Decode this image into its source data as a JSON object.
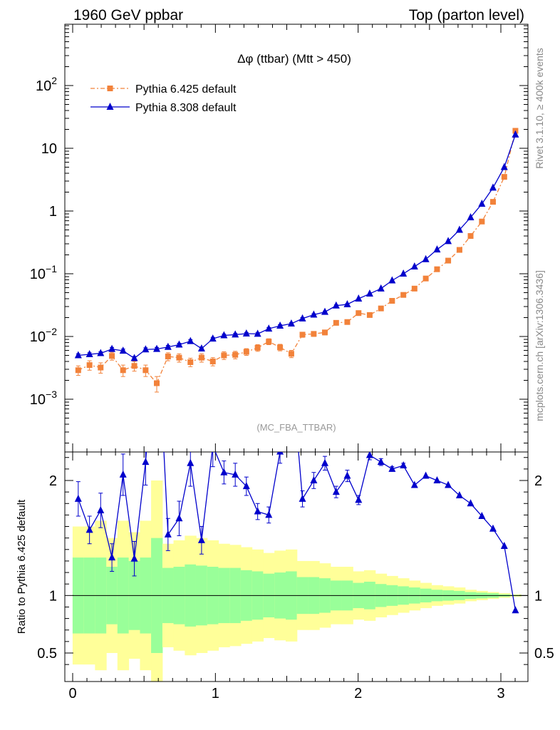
{
  "header": {
    "left": "1960 GeV ppbar",
    "right": "Top (parton level)"
  },
  "side_labels": {
    "rivet": "Rivet 3.1.10, ≥ 400k events",
    "mcplots": "mcplots.cern.ch [arXiv:1306.3436]"
  },
  "analysis_id": "(MC_FBA_TTBAR)",
  "colors": {
    "pythia6": "#f2823a",
    "pythia8": "#0000cc",
    "band_inner": "#99ff99",
    "band_outer": "#ffff99"
  },
  "chart_data": [
    {
      "type": "line",
      "title": "Δφ (ttbar) (Mtt > 450)",
      "yscale": "log",
      "xlim": [
        -0.06,
        3.2
      ],
      "ylim": [
        0.00015,
        1000
      ],
      "yticks": [
        {
          "value": 0.001,
          "base": "10",
          "exp": "−3"
        },
        {
          "value": 0.01,
          "base": "10",
          "exp": "−2"
        },
        {
          "value": 0.1,
          "base": "10",
          "exp": "−1"
        },
        {
          "value": 1,
          "base": "1",
          "exp": ""
        },
        {
          "value": 10,
          "base": "10",
          "exp": ""
        },
        {
          "value": 100,
          "base": "10",
          "exp": "2"
        }
      ],
      "legend_position": "top-left",
      "x": [
        0.039,
        0.118,
        0.196,
        0.275,
        0.353,
        0.432,
        0.511,
        0.589,
        0.668,
        0.746,
        0.825,
        0.903,
        0.982,
        1.06,
        1.139,
        1.217,
        1.296,
        1.374,
        1.453,
        1.532,
        1.61,
        1.689,
        1.767,
        1.846,
        1.924,
        2.003,
        2.081,
        2.16,
        2.238,
        2.317,
        2.395,
        2.474,
        2.553,
        2.631,
        2.71,
        2.788,
        2.867,
        2.945,
        3.024,
        3.102
      ],
      "series": [
        {
          "name": "Pythia 6.425 default",
          "values": [
            0.0029,
            0.0035,
            0.0032,
            0.0049,
            0.0029,
            0.0034,
            0.0029,
            0.0018,
            0.0048,
            0.0046,
            0.0039,
            0.0046,
            0.004,
            0.005,
            0.0051,
            0.0057,
            0.0066,
            0.0083,
            0.0067,
            0.0053,
            0.0107,
            0.011,
            0.0116,
            0.0165,
            0.017,
            0.0236,
            0.022,
            0.028,
            0.037,
            0.046,
            0.058,
            0.084,
            0.118,
            0.162,
            0.24,
            0.4,
            0.68,
            1.4,
            3.5,
            19.0
          ],
          "errors": [
            0.0005,
            0.0006,
            0.0006,
            0.0007,
            0.0006,
            0.0006,
            0.0006,
            0.0005,
            0.0007,
            0.0007,
            0.0006,
            0.0007,
            0.0006,
            0.0007,
            0.0007,
            0.0007,
            0.0008,
            0.0009,
            0.0008,
            0.0007,
            0.001,
            0.001,
            0.001,
            0.0012,
            0.0012,
            0.0015,
            0.0014,
            0.0016,
            0.0018,
            0.002,
            0,
            0,
            0,
            0,
            0,
            0,
            0,
            0,
            0,
            0
          ]
        },
        {
          "name": "Pythia 8.308 default",
          "values": [
            0.005,
            0.0052,
            0.0054,
            0.0063,
            0.0059,
            0.0045,
            0.0062,
            0.0063,
            0.0068,
            0.0074,
            0.0084,
            0.0064,
            0.0092,
            0.0104,
            0.0107,
            0.0111,
            0.011,
            0.0133,
            0.0148,
            0.016,
            0.0193,
            0.0222,
            0.0246,
            0.031,
            0.0325,
            0.04,
            0.048,
            0.058,
            0.078,
            0.1,
            0.13,
            0.17,
            0.243,
            0.33,
            0.5,
            0.79,
            1.3,
            2.35,
            5.0,
            16.5
          ],
          "errors": [
            0.0003,
            0.0003,
            0.0003,
            0.0004,
            0.0004,
            0.0003,
            0.0004,
            0.0004,
            0.0004,
            0.0004,
            0.0005,
            0.0004,
            0.0005,
            0.0005,
            0.0005,
            0.0005,
            0.0005,
            0.0006,
            0.0006,
            0.0006,
            0.0007,
            0.0008,
            0.0008,
            0.0009,
            0.0009,
            0,
            0,
            0,
            0,
            0,
            0,
            0,
            0,
            0,
            0,
            0,
            0,
            0,
            0,
            0
          ]
        }
      ]
    },
    {
      "type": "line",
      "ylabel": "Ratio to Pythia 6.425 default",
      "xlim": [
        -0.06,
        3.2
      ],
      "ylim": [
        0.34,
        2.3
      ],
      "xticks": [
        0,
        1,
        2,
        3
      ],
      "yticks": [
        0.5,
        1,
        2
      ],
      "reference": 1,
      "band_inner": [
        0.33,
        0.33,
        0.33,
        0.25,
        0.33,
        0.3,
        0.33,
        0.5,
        0.24,
        0.25,
        0.27,
        0.26,
        0.25,
        0.24,
        0.24,
        0.22,
        0.21,
        0.19,
        0.2,
        0.21,
        0.16,
        0.16,
        0.15,
        0.13,
        0.13,
        0.11,
        0.12,
        0.1,
        0.09,
        0.08,
        0.07,
        0.06,
        0.05,
        0.045,
        0.04,
        0.03,
        0.025,
        0.02,
        0.01,
        0.005
      ],
      "band_outer": [
        0.6,
        0.6,
        0.65,
        0.5,
        0.65,
        0.55,
        0.65,
        1.0,
        0.45,
        0.48,
        0.52,
        0.5,
        0.48,
        0.45,
        0.44,
        0.42,
        0.4,
        0.37,
        0.39,
        0.4,
        0.3,
        0.3,
        0.28,
        0.25,
        0.25,
        0.21,
        0.22,
        0.19,
        0.17,
        0.15,
        0.13,
        0.11,
        0.09,
        0.08,
        0.07,
        0.05,
        0.04,
        0.03,
        0.02,
        0.01
      ],
      "ratio": [
        1.84,
        1.57,
        1.74,
        1.33,
        2.05,
        1.32,
        2.16,
        3.5,
        1.53,
        1.67,
        2.15,
        1.48,
        2.3,
        2.07,
        2.05,
        1.95,
        1.73,
        1.7,
        2.25,
        3.0,
        1.84,
        2.0,
        2.15,
        1.9,
        2.04,
        1.83,
        2.22,
        2.16,
        2.1,
        2.13,
        1.96,
        2.04,
        2.0,
        1.96,
        1.87,
        1.8,
        1.69,
        1.58,
        1.43,
        0.87
      ],
      "ratio_errors": [
        0.15,
        0.12,
        0.15,
        0.12,
        0.18,
        0.15,
        0.2,
        0.3,
        0.14,
        0.15,
        0.2,
        0.12,
        0.18,
        0.1,
        0.1,
        0.08,
        0.07,
        0.07,
        0.1,
        0.2,
        0.07,
        0.07,
        0.06,
        0.05,
        0.05,
        0.04,
        0.04,
        0.03,
        0.02,
        0.02,
        0,
        0,
        0,
        0,
        0,
        0,
        0,
        0,
        0,
        0
      ]
    }
  ]
}
